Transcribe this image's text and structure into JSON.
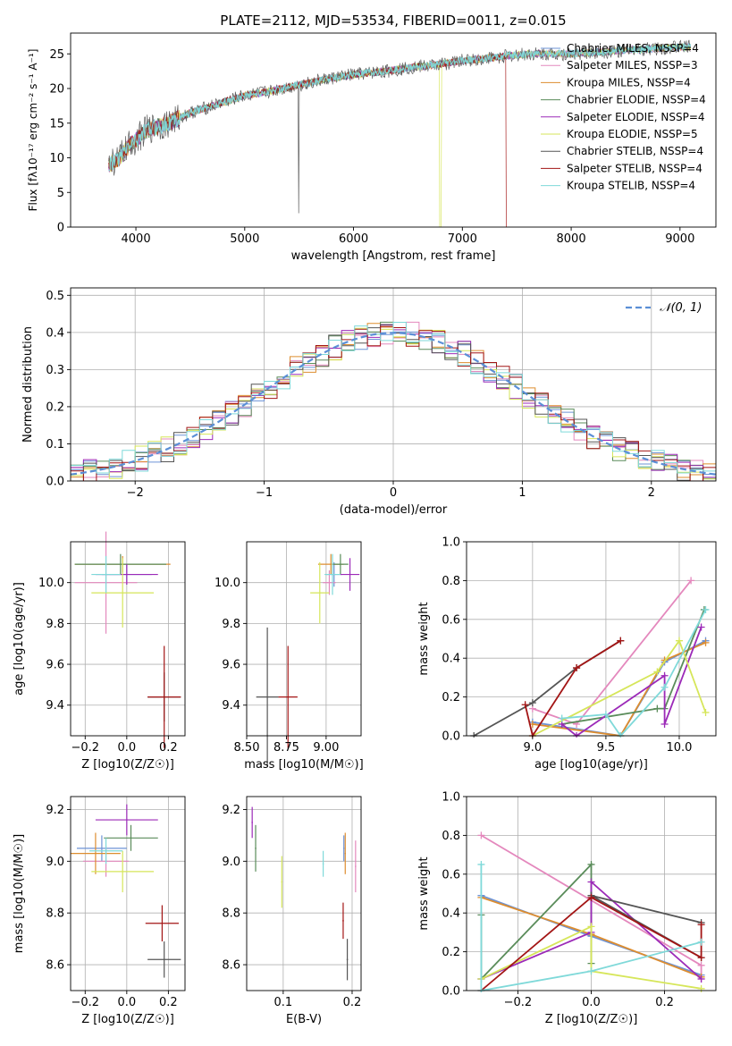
{
  "figure": {
    "title": "PLATE=2112, MJD=53534, FIBERID=0011, z=0.015"
  },
  "colors": {
    "Chabrier MILES": "#6d93d6",
    "Salpeter MILES": "#e488bd",
    "Kroupa MILES": "#dd8d2f",
    "Chabrier ELODIE": "#5a8c5a",
    "Salpeter ELODIE": "#9c2ab8",
    "Kroupa ELODIE": "#d6e65a",
    "Chabrier STELIB": "#555555",
    "Salpeter STELIB": "#a31515",
    "Kroupa STELIB": "#7fd9d9"
  },
  "chart_data": [
    {
      "id": "spectrum",
      "type": "line",
      "title": "PLATE=2112, MJD=53534, FIBERID=0011, z=0.015",
      "xlabel": "wavelength [Angstrom, rest frame]",
      "ylabel": "Flux [fλ10⁻¹⁷ erg cm⁻² s⁻¹ A⁻¹]",
      "xlim": [
        3400,
        9330
      ],
      "ylim": [
        0,
        28
      ],
      "xticks": [
        4000,
        5000,
        6000,
        7000,
        8000,
        9000
      ],
      "yticks": [
        0,
        5,
        10,
        15,
        20,
        25
      ],
      "grid": false,
      "legend_placement": "upper-right",
      "legend": [
        "Chabrier MILES, NSSP=4",
        "Salpeter MILES, NSSP=3",
        "Kroupa MILES, NSSP=4",
        "Chabrier ELODIE, NSSP=4",
        "Salpeter ELODIE, NSSP=4",
        "Kroupa ELODIE, NSSP=5",
        "Chabrier STELIB, NSSP=4",
        "Salpeter STELIB, NSSP=4",
        "Kroupa STELIB, NSSP=4"
      ],
      "continuum": [
        [
          3750,
          9
        ],
        [
          3850,
          10
        ],
        [
          3950,
          12
        ],
        [
          4100,
          14
        ],
        [
          4300,
          15
        ],
        [
          4500,
          16.5
        ],
        [
          4800,
          18
        ],
        [
          5000,
          19
        ],
        [
          5200,
          19.5
        ],
        [
          5500,
          20.5
        ],
        [
          5800,
          21.5
        ],
        [
          6000,
          22
        ],
        [
          6300,
          22.5
        ],
        [
          6500,
          23
        ],
        [
          6800,
          23.5
        ],
        [
          7000,
          24
        ],
        [
          7300,
          24.5
        ],
        [
          7600,
          25
        ],
        [
          8000,
          25
        ],
        [
          8500,
          25.5
        ],
        [
          9000,
          26
        ],
        [
          9100,
          26
        ]
      ]
    },
    {
      "id": "residuals",
      "type": "histogram",
      "xlabel": "(data-model)/error",
      "ylabel": "Normed distribution",
      "xlim": [
        -2.5,
        2.5
      ],
      "ylim": [
        0,
        0.52
      ],
      "xticks": [
        -2,
        -1,
        0,
        1,
        2
      ],
      "yticks": [
        0.0,
        0.1,
        0.2,
        0.3,
        0.4,
        0.5
      ],
      "grid": true,
      "bin_width": 0.1,
      "legend_placement": "upper-right",
      "reference_curve": {
        "name": "𝒩(0, 1)",
        "mean": 0,
        "sigma": 1,
        "color": "#5b8fd6"
      }
    },
    {
      "id": "age-vs-Z",
      "type": "scatter",
      "xlabel": "Z [log10(Z/Z☉)]",
      "ylabel": "age  [log10(age/yr)]",
      "xlim": [
        -0.27,
        0.28
      ],
      "ylim": [
        9.25,
        10.2
      ],
      "xticks": [
        -0.2,
        0.0,
        0.2
      ],
      "yticks": [
        9.4,
        9.6,
        9.8,
        10.0
      ],
      "grid": true,
      "points": [
        {
          "model": "Chabrier MILES",
          "x": 0.0,
          "y": 10.04,
          "xerr": 0.12,
          "yerr": 0.05
        },
        {
          "model": "Salpeter MILES",
          "x": -0.1,
          "y": 10.0,
          "xerr": 0.15,
          "yerr": 0.25
        },
        {
          "model": "Kroupa MILES",
          "x": -0.02,
          "y": 10.09,
          "xerr": 0.23,
          "yerr": 0.04
        },
        {
          "model": "Chabrier ELODIE",
          "x": -0.03,
          "y": 10.09,
          "xerr": 0.22,
          "yerr": 0.05
        },
        {
          "model": "Salpeter ELODIE",
          "x": 0.0,
          "y": 10.04,
          "xerr": 0.15,
          "yerr": 0.05
        },
        {
          "model": "Kroupa ELODIE",
          "x": -0.02,
          "y": 9.95,
          "xerr": 0.15,
          "yerr": 0.17
        },
        {
          "model": "Chabrier STELIB",
          "x": 0.18,
          "y": 9.44,
          "xerr": 0.08,
          "yerr": 0.12
        },
        {
          "model": "Salpeter STELIB",
          "x": 0.18,
          "y": 9.44,
          "xerr": 0.08,
          "yerr": 0.25
        },
        {
          "model": "Kroupa STELIB",
          "x": -0.1,
          "y": 10.04,
          "xerr": 0.07,
          "yerr": 0.09
        }
      ]
    },
    {
      "id": "age-vs-mass",
      "type": "scatter",
      "xlabel": "mass [log10(M/M☉)]",
      "ylabel": "",
      "xlim": [
        8.5,
        9.22
      ],
      "ylim": [
        9.25,
        10.2
      ],
      "xticks": [
        8.5,
        8.75,
        9.0
      ],
      "yticks": [
        9.4,
        9.6,
        9.8,
        10.0
      ],
      "grid": true,
      "points": [
        {
          "model": "Chabrier MILES",
          "x": 9.05,
          "y": 10.04,
          "xerr": 0.05,
          "yerr": 0.06
        },
        {
          "model": "Salpeter MILES",
          "x": 9.02,
          "y": 10.0,
          "xerr": 0.04,
          "yerr": 0.06
        },
        {
          "model": "Kroupa MILES",
          "x": 9.03,
          "y": 10.09,
          "xerr": 0.08,
          "yerr": 0.05
        },
        {
          "model": "Chabrier ELODIE",
          "x": 9.09,
          "y": 10.09,
          "xerr": 0.05,
          "yerr": 0.05
        },
        {
          "model": "Salpeter ELODIE",
          "x": 9.15,
          "y": 10.04,
          "xerr": 0.06,
          "yerr": 0.08
        },
        {
          "model": "Kroupa ELODIE",
          "x": 8.96,
          "y": 9.95,
          "xerr": 0.06,
          "yerr": 0.15
        },
        {
          "model": "Chabrier STELIB",
          "x": 8.63,
          "y": 9.44,
          "xerr": 0.07,
          "yerr": 0.34
        },
        {
          "model": "Salpeter STELIB",
          "x": 8.76,
          "y": 9.44,
          "xerr": 0.06,
          "yerr": 0.25
        },
        {
          "model": "Kroupa STELIB",
          "x": 9.04,
          "y": 10.04,
          "xerr": 0.05,
          "yerr": 0.1
        }
      ]
    },
    {
      "id": "mass-weight-vs-age",
      "type": "line",
      "xlabel": "age  [log10(age/yr)]",
      "ylabel": "mass weight",
      "xlim": [
        8.55,
        10.25
      ],
      "ylim": [
        0,
        1.0
      ],
      "xticks": [
        9.0,
        9.5,
        10.0
      ],
      "yticks": [
        0.0,
        0.2,
        0.4,
        0.6,
        0.8,
        1.0
      ],
      "grid": true,
      "series": [
        {
          "model": "Chabrier MILES",
          "x": [
            9.0,
            9.6,
            9.9,
            10.18
          ],
          "y": [
            0.07,
            0.0,
            0.38,
            0.49
          ]
        },
        {
          "model": "Salpeter MILES",
          "x": [
            9.0,
            9.3,
            10.08
          ],
          "y": [
            0.14,
            0.06,
            0.8
          ]
        },
        {
          "model": "Kroupa MILES",
          "x": [
            9.0,
            9.6,
            9.9,
            10.18
          ],
          "y": [
            0.06,
            0.0,
            0.39,
            0.48
          ]
        },
        {
          "model": "Chabrier ELODIE",
          "x": [
            9.2,
            9.85,
            9.9,
            10.17
          ],
          "y": [
            0.06,
            0.14,
            0.14,
            0.65
          ]
        },
        {
          "model": "Salpeter ELODIE",
          "x": [
            9.2,
            9.3,
            9.9,
            9.9,
            10.15
          ],
          "y": [
            0.06,
            0.0,
            0.31,
            0.06,
            0.56
          ]
        },
        {
          "model": "Kroupa ELODIE",
          "x": [
            9.0,
            9.85,
            10.0,
            10.18
          ],
          "y": [
            0.0,
            0.33,
            0.49,
            0.12
          ]
        },
        {
          "model": "Chabrier STELIB",
          "x": [
            8.6,
            9.0,
            9.3,
            9.6
          ],
          "y": [
            0.0,
            0.17,
            0.35,
            0.49
          ]
        },
        {
          "model": "Salpeter STELIB",
          "x": [
            8.95,
            9.0,
            9.3,
            9.6
          ],
          "y": [
            0.16,
            0.0,
            0.35,
            0.49
          ]
        },
        {
          "model": "Kroupa STELIB",
          "x": [
            9.2,
            9.5,
            9.6,
            9.9,
            10.18
          ],
          "y": [
            0.09,
            0.11,
            0.0,
            0.25,
            0.65
          ]
        }
      ]
    },
    {
      "id": "mass-vs-Z",
      "type": "scatter",
      "xlabel": "Z [log10(Z/Z☉)]",
      "ylabel": "mass [log10(M/M☉)]",
      "xlim": [
        -0.27,
        0.28
      ],
      "ylim": [
        8.5,
        9.25
      ],
      "xticks": [
        -0.2,
        0.0,
        0.2
      ],
      "yticks": [
        8.6,
        8.8,
        9.0,
        9.2
      ],
      "grid": true,
      "points": [
        {
          "model": "Chabrier MILES",
          "x": -0.12,
          "y": 9.05,
          "xerr": 0.12,
          "yerr": 0.05
        },
        {
          "model": "Salpeter MILES",
          "x": -0.1,
          "y": 9.0,
          "xerr": 0.11,
          "yerr": 0.06
        },
        {
          "model": "Kroupa MILES",
          "x": -0.15,
          "y": 9.03,
          "xerr": 0.12,
          "yerr": 0.08
        },
        {
          "model": "Chabrier ELODIE",
          "x": 0.02,
          "y": 9.09,
          "xerr": 0.13,
          "yerr": 0.05
        },
        {
          "model": "Salpeter ELODIE",
          "x": 0.0,
          "y": 9.16,
          "xerr": 0.15,
          "yerr": 0.06
        },
        {
          "model": "Kroupa ELODIE",
          "x": -0.02,
          "y": 8.96,
          "xerr": 0.15,
          "yerr": 0.08
        },
        {
          "model": "Chabrier STELIB",
          "x": 0.18,
          "y": 8.62,
          "xerr": 0.08,
          "yerr": 0.07
        },
        {
          "model": "Salpeter STELIB",
          "x": 0.17,
          "y": 8.76,
          "xerr": 0.08,
          "yerr": 0.07
        },
        {
          "model": "Kroupa STELIB",
          "x": -0.1,
          "y": 9.04,
          "xerr": 0.08,
          "yerr": 0.05
        }
      ]
    },
    {
      "id": "mass-vs-ebv",
      "type": "scatter",
      "xlabel": "E(B-V)",
      "ylabel": "",
      "xlim": [
        0.047,
        0.213
      ],
      "ylim": [
        8.5,
        9.25
      ],
      "xticks": [
        0.1,
        0.2
      ],
      "yticks": [
        8.6,
        8.8,
        9.0,
        9.2
      ],
      "grid": true,
      "points": [
        {
          "model": "Chabrier MILES",
          "x": 0.188,
          "y": 9.05,
          "xerr": 0.001,
          "yerr": 0.05
        },
        {
          "model": "Salpeter MILES",
          "x": 0.205,
          "y": 8.98,
          "xerr": 0.001,
          "yerr": 0.1
        },
        {
          "model": "Kroupa MILES",
          "x": 0.19,
          "y": 9.03,
          "xerr": 0.001,
          "yerr": 0.08
        },
        {
          "model": "Chabrier ELODIE",
          "x": 0.06,
          "y": 9.05,
          "xerr": 0.001,
          "yerr": 0.09
        },
        {
          "model": "Salpeter ELODIE",
          "x": 0.055,
          "y": 9.15,
          "xerr": 0.001,
          "yerr": 0.06
        },
        {
          "model": "Kroupa ELODIE",
          "x": 0.098,
          "y": 8.92,
          "xerr": 0.001,
          "yerr": 0.1
        },
        {
          "model": "Chabrier STELIB",
          "x": 0.193,
          "y": 8.62,
          "xerr": 0.001,
          "yerr": 0.08
        },
        {
          "model": "Salpeter STELIB",
          "x": 0.187,
          "y": 8.77,
          "xerr": 0.001,
          "yerr": 0.07
        },
        {
          "model": "Kroupa STELIB",
          "x": 0.158,
          "y": 8.99,
          "xerr": 0.001,
          "yerr": 0.05
        }
      ]
    },
    {
      "id": "mass-weight-vs-Z",
      "type": "line",
      "xlabel": "Z [log10(Z/Z☉)]",
      "ylabel": "mass weight",
      "xlim": [
        -0.34,
        0.34
      ],
      "ylim": [
        0,
        1.0
      ],
      "xticks": [
        -0.2,
        0.0,
        0.2
      ],
      "yticks": [
        0.0,
        0.2,
        0.4,
        0.6,
        0.8,
        1.0
      ],
      "grid": true,
      "series": [
        {
          "model": "Chabrier MILES",
          "x": [
            -0.3,
            0.0,
            0.3
          ],
          "y": [
            0.49,
            0.28,
            0.08
          ]
        },
        {
          "model": "Salpeter MILES",
          "x": [
            -0.3,
            0.3,
            0.3
          ],
          "y": [
            0.8,
            0.13,
            0.06
          ]
        },
        {
          "model": "Kroupa MILES",
          "x": [
            -0.3,
            0.0,
            0.3
          ],
          "y": [
            0.48,
            0.29,
            0.07
          ]
        },
        {
          "model": "Chabrier ELODIE",
          "x": [
            -0.3,
            -0.3,
            0.0,
            0.0
          ],
          "y": [
            0.39,
            0.06,
            0.65,
            0.14
          ]
        },
        {
          "model": "Salpeter ELODIE",
          "x": [
            -0.3,
            0.0,
            0.0,
            0.3
          ],
          "y": [
            0.06,
            0.3,
            0.56,
            0.06
          ]
        },
        {
          "model": "Kroupa ELODIE",
          "x": [
            -0.3,
            0.0,
            0.0,
            0.3
          ],
          "y": [
            0.06,
            0.33,
            0.1,
            0.01
          ]
        },
        {
          "model": "Chabrier STELIB",
          "x": [
            0.3,
            0.0,
            0.0,
            0.3
          ],
          "y": [
            0.35,
            0.49,
            0.49,
            0.17
          ]
        },
        {
          "model": "Salpeter STELIB",
          "x": [
            -0.3,
            0.0,
            0.3,
            0.3
          ],
          "y": [
            0.0,
            0.48,
            0.17,
            0.34
          ]
        },
        {
          "model": "Kroupa STELIB",
          "x": [
            -0.3,
            -0.3,
            0.0,
            0.3
          ],
          "y": [
            0.65,
            0.0,
            0.1,
            0.25
          ]
        }
      ]
    }
  ]
}
